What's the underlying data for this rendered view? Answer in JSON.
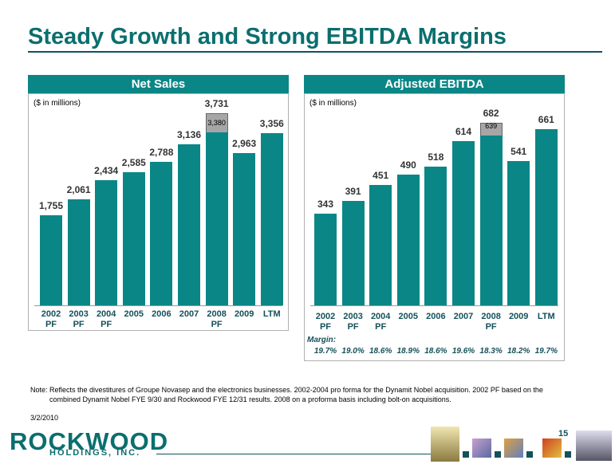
{
  "title": "Steady Growth and Strong EBITDA Margins",
  "chart_data": [
    {
      "type": "bar",
      "title": "Net Sales",
      "subtitle": "($ in millions)",
      "categories": [
        "2002 PF",
        "2003 PF",
        "2004 PF",
        "2005",
        "2006",
        "2007",
        "2008 PF",
        "2009",
        "LTM"
      ],
      "values": [
        1755,
        2061,
        2434,
        2585,
        2788,
        3136,
        3731,
        2963,
        3356
      ],
      "value_labels": [
        "1,755",
        "2,061",
        "2,434",
        "2,585",
        "2,788",
        "3,136",
        "3,731",
        "2,963",
        "3,356"
      ],
      "inner_values": [
        null,
        null,
        null,
        null,
        null,
        null,
        3380,
        null,
        null
      ],
      "inner_value_labels": [
        null,
        null,
        null,
        null,
        null,
        null,
        "3,380",
        null,
        null
      ],
      "color": "#0b8686",
      "addon_color": "#a6a6a6",
      "ylim": [
        0,
        4000
      ]
    },
    {
      "type": "bar",
      "title": "Adjusted EBITDA",
      "subtitle": "($ in millions)",
      "categories": [
        "2002 PF",
        "2003 PF",
        "2004 PF",
        "2005",
        "2006",
        "2007",
        "2008 PF",
        "2009",
        "LTM"
      ],
      "values": [
        343,
        391,
        451,
        490,
        518,
        614,
        682,
        541,
        661
      ],
      "inner_values": [
        null,
        null,
        null,
        null,
        null,
        null,
        639,
        null,
        null
      ],
      "color": "#0b8686",
      "addon_color": "#a6a6a6",
      "ylim": [
        0,
        770
      ],
      "margin_title": "Margin:",
      "margin_labels": [
        "19.7%",
        "19.0%",
        "18.6%",
        "18.9%",
        "18.6%",
        "19.6%",
        "18.3%",
        "18.2%",
        "19.7%"
      ]
    }
  ],
  "note": "Note: Reflects the divestitures of Groupe Novasep and the electronics businesses. 2002-2004 pro forma for the Dynamit Nobel acquisition. 2002 PF based on the combined Dynamit Nobel FYE 9/30 and Rockwood FYE 12/31 results. 2008 on a proforma basis including bolt-on acquisitions.",
  "date": "3/2/2010",
  "page_number": "15",
  "logo": {
    "name": "ROCKWOOD",
    "subtitle": "HOLDINGS, INC."
  }
}
